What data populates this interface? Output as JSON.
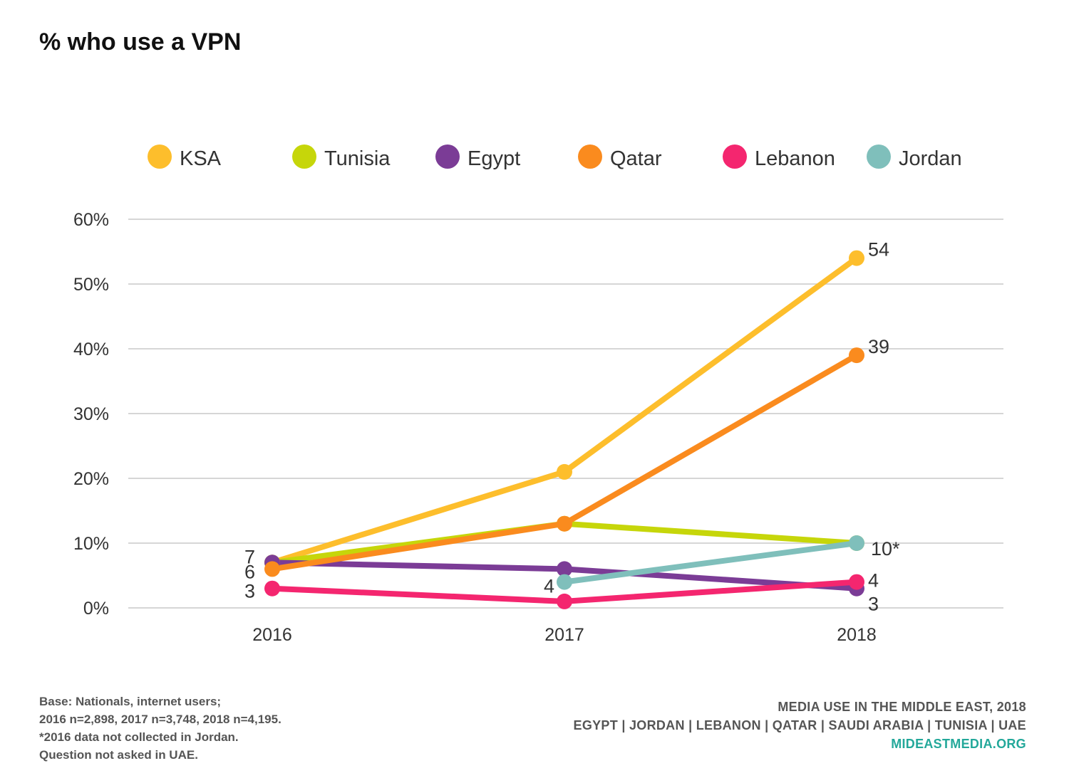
{
  "title": "% who use a VPN",
  "chart_data": {
    "type": "line",
    "x": [
      "2016",
      "2017",
      "2018"
    ],
    "ylim": [
      0,
      60
    ],
    "yticks": [
      "0%",
      "10%",
      "20%",
      "30%",
      "40%",
      "50%",
      "60%"
    ],
    "grid": true,
    "legend_position": "top",
    "series": [
      {
        "name": "KSA",
        "color": "#FDBE2C",
        "values": [
          7,
          21,
          54
        ],
        "labels": [
          "",
          "",
          "54"
        ]
      },
      {
        "name": "Tunisia",
        "color": "#C6D60A",
        "values": [
          7,
          13,
          10
        ],
        "labels": [
          "",
          "",
          ""
        ]
      },
      {
        "name": "Egypt",
        "color": "#7B3C96",
        "values": [
          7,
          6,
          3
        ],
        "labels": [
          "7",
          "",
          "3"
        ]
      },
      {
        "name": "Qatar",
        "color": "#FA8B1E",
        "values": [
          6,
          13,
          39
        ],
        "labels": [
          "6",
          "",
          "39"
        ]
      },
      {
        "name": "Lebanon",
        "color": "#F4266F",
        "values": [
          3,
          1,
          4
        ],
        "labels": [
          "3",
          "",
          "4"
        ]
      },
      {
        "name": "Jordan",
        "color": "#7FBFBB",
        "values": [
          null,
          4,
          10
        ],
        "labels": [
          "",
          "4",
          "10*"
        ]
      }
    ]
  },
  "footnote_left": [
    "Base: Nationals, internet users;",
    "2016 n=2,898, 2017 n=3,748, 2018 n=4,195.",
    "*2016 data not collected in Jordan.",
    "Question not asked in UAE."
  ],
  "footnote_right": {
    "line1": "MEDIA USE IN THE MIDDLE EAST, 2018",
    "line2": "EGYPT | JORDAN | LEBANON | QATAR | SAUDI ARABIA | TUNISIA | UAE",
    "site": "MIDEASTMEDIA.ORG"
  }
}
